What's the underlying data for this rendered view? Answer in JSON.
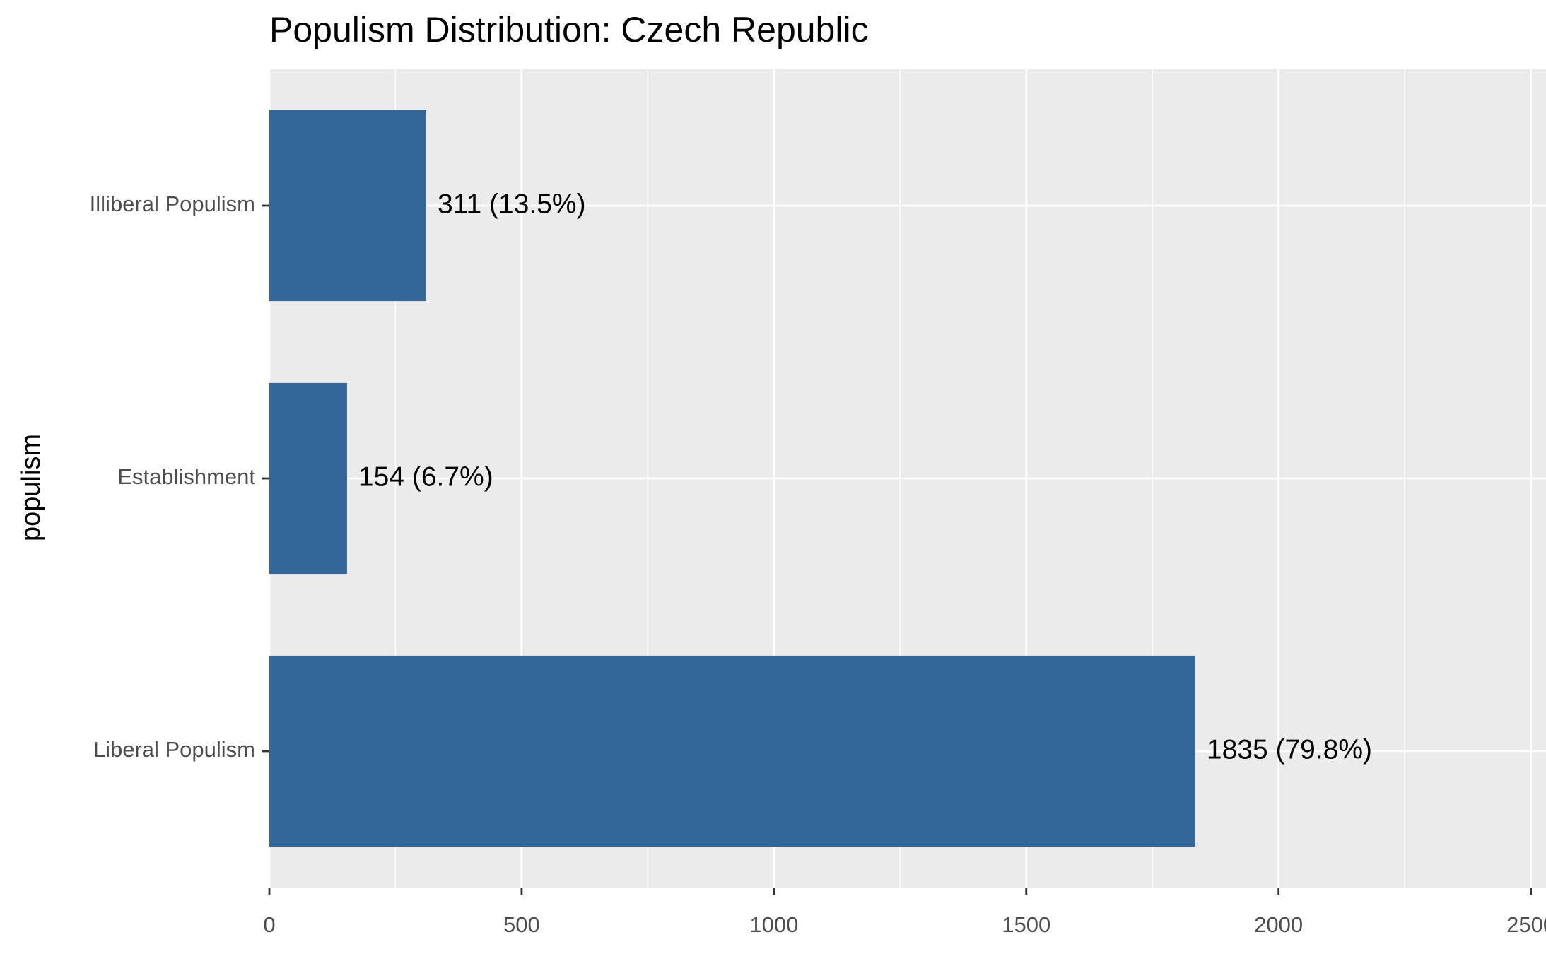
{
  "chart_data": {
    "type": "bar",
    "orientation": "horizontal",
    "title": "Populism Distribution: Czech Republic",
    "y_label": "populism",
    "categories": [
      "Illiberal Populism",
      "Establishment",
      "Liberal Populism"
    ],
    "values": [
      311,
      154,
      1835
    ],
    "value_labels": [
      "311 (13.5%)",
      "154 (6.7%)",
      "1835 (79.8%)"
    ],
    "color": "#336699",
    "xlim": [
      0,
      2530
    ],
    "xticks": [
      0,
      500,
      1000,
      1500,
      2000,
      2500
    ],
    "x_minor_grid": [
      250,
      750,
      1250,
      1750,
      2250
    ],
    "grid": true
  }
}
